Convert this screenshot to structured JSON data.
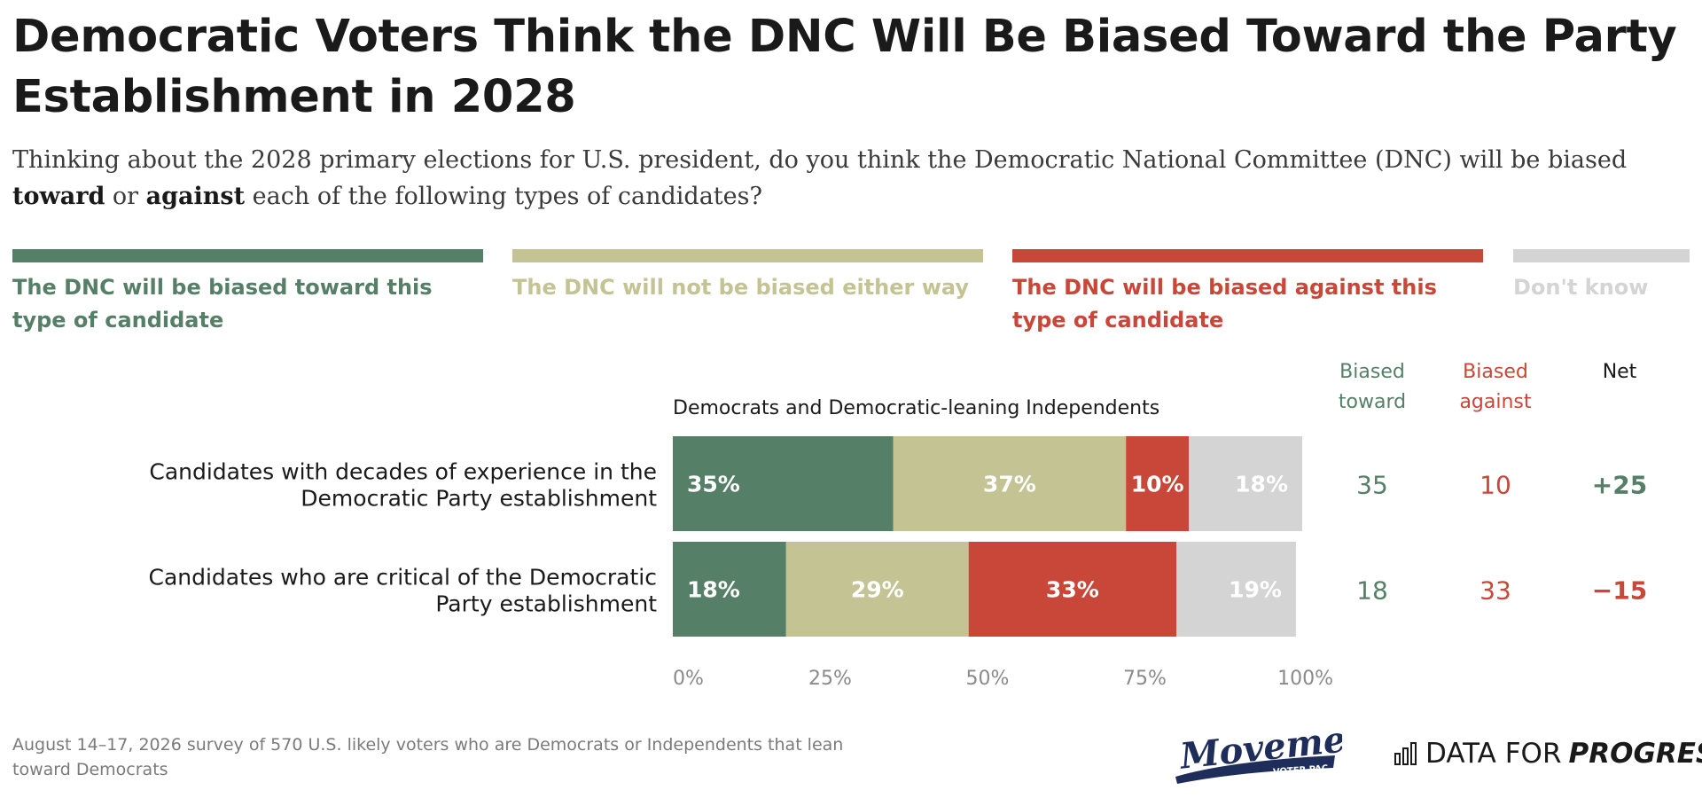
{
  "title": "Democratic Voters Think the DNC Will Be Biased Toward the Party Establishment in 2028",
  "subtitle": {
    "part1": "Thinking about the 2028 primary elections for U.S. president, do you think the Democratic National Committee (DNC) will be biased ",
    "bold1": "toward",
    "part2": " or ",
    "bold2": "against",
    "part3": " each of the following types of candidates?"
  },
  "legend": [
    {
      "label": "The DNC will be biased toward this type of candidate",
      "color": "#557f66"
    },
    {
      "label": "The DNC will not be biased either way",
      "color": "#c4c394"
    },
    {
      "label": "The DNC will be biased against this type of candidate",
      "color": "#c84738"
    },
    {
      "label": "Don't know",
      "color": "#d4d4d4"
    }
  ],
  "chart_data": {
    "type": "bar",
    "orientation": "horizontal",
    "stacked": true,
    "group_label": "Democrats and Democratic-leaning Independents",
    "categories": [
      "Candidates with decades of experience in the Democratic Party establishment",
      "Candidates who are critical of the Democratic Party establishment"
    ],
    "series": [
      {
        "name": "The DNC will be biased toward this type of candidate",
        "values": [
          35,
          18
        ],
        "labels": [
          "35%",
          "18%"
        ],
        "color": "#557f66"
      },
      {
        "name": "The DNC will not be biased either way",
        "values": [
          37,
          29
        ],
        "labels": [
          "37%",
          "29%"
        ],
        "color": "#c4c394"
      },
      {
        "name": "The DNC will be biased against this type of candidate",
        "values": [
          10,
          33
        ],
        "labels": [
          "10%",
          "33%"
        ],
        "color": "#c84738"
      },
      {
        "name": "Don't know",
        "values": [
          18,
          19
        ],
        "labels": [
          "18%",
          "19%"
        ],
        "color": "#d4d4d4"
      }
    ],
    "xlim": [
      0,
      100
    ],
    "x_ticks": [
      "0%",
      "25%",
      "50%",
      "75%",
      "100%"
    ],
    "summary_columns": [
      {
        "header": "Biased toward",
        "values": [
          "35",
          "18"
        ],
        "color": "#557f66"
      },
      {
        "header": "Biased against",
        "values": [
          "10",
          "33"
        ],
        "color": "#c84738"
      },
      {
        "header": "Net",
        "values": [
          "+25",
          "−15"
        ],
        "color": "#1a1a1a"
      }
    ],
    "net_colors": [
      "#557f66",
      "#c84738"
    ],
    "grid": false,
    "legend_position": "top"
  },
  "footnote": "August 14–17, 2026 survey of 570 U.S. likely voters who are Democrats or Independents that lean toward Democrats",
  "logos": {
    "movement": "Movement",
    "movement_sub": "VOTER PAC",
    "dfp_regular": "DATA FOR",
    "dfp_italic": "PROGRESS",
    "movement_color": "#1f2d5a"
  }
}
